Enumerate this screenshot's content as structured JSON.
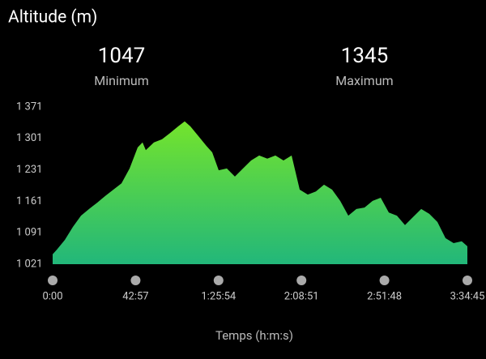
{
  "title": "Altitude (m)",
  "stats": [
    {
      "value": "1047",
      "label": "Minimum"
    },
    {
      "value": "1345",
      "label": "Maximum"
    }
  ],
  "chart_data": {
    "type": "area",
    "x_label": "Temps (h:m:s)",
    "x": [
      0,
      126,
      377,
      629,
      881,
      1132,
      1384,
      1636,
      1887,
      2139,
      2391,
      2642,
      2793,
      2894,
      3146,
      3397,
      3649,
      3901,
      4102,
      4278,
      4530,
      4782,
      4958,
      5159,
      5411,
      5662,
      5914,
      6166,
      6417,
      6669,
      6921,
      7172,
      7424,
      7676,
      7927,
      8179,
      8431,
      8682,
      8934,
      9186,
      9437,
      9689,
      9941,
      10192,
      10444,
      10696,
      10947,
      11199,
      11451,
      11702,
      11954,
      12206,
      12457,
      12709,
      12885
    ],
    "values": [
      1043,
      1053,
      1075,
      1104,
      1129,
      1144,
      1158,
      1173,
      1187,
      1201,
      1234,
      1281,
      1292,
      1275,
      1292,
      1299,
      1313,
      1328,
      1339,
      1328,
      1306,
      1284,
      1270,
      1230,
      1234,
      1216,
      1234,
      1252,
      1263,
      1256,
      1263,
      1252,
      1263,
      1187,
      1176,
      1183,
      1198,
      1187,
      1162,
      1129,
      1144,
      1147,
      1162,
      1169,
      1136,
      1129,
      1108,
      1126,
      1144,
      1133,
      1115,
      1079,
      1068,
      1072,
      1061
    ],
    "xlim": [
      0,
      12885
    ],
    "xticks": [
      {
        "value": 0,
        "label": "0:00"
      },
      {
        "value": 2577,
        "label": "42:57"
      },
      {
        "value": 5154,
        "label": "1:25:54"
      },
      {
        "value": 7731,
        "label": "2:08:51"
      },
      {
        "value": 10308,
        "label": "2:51:48"
      },
      {
        "value": 12885,
        "label": "3:34:45"
      }
    ],
    "ylim": [
      1021,
      1371
    ],
    "yticks": [
      {
        "value": 1021,
        "label": "1 021"
      },
      {
        "value": 1091,
        "label": "1 091"
      },
      {
        "value": 1161,
        "label": "1 161"
      },
      {
        "value": 1231,
        "label": "1 231"
      },
      {
        "value": 1301,
        "label": "1 301"
      },
      {
        "value": 1371,
        "label": "1 371"
      }
    ]
  }
}
